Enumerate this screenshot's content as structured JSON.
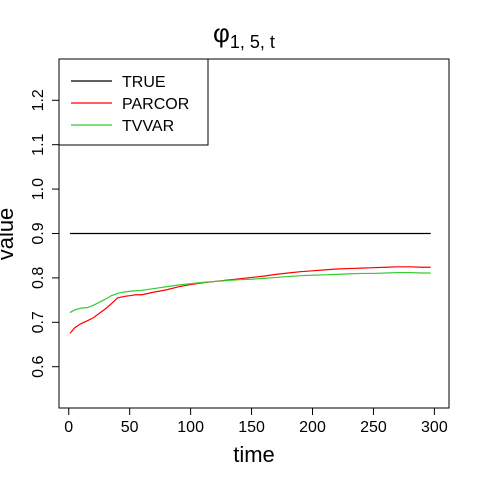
{
  "chart_data": {
    "type": "line",
    "title": {
      "symbol": "φ",
      "subscript": "1, 5, t"
    },
    "xlabel": "time",
    "ylabel": "value",
    "xlim": [
      -8,
      312
    ],
    "ylim": [
      0.507,
      1.293
    ],
    "x_ticks": [
      0,
      50,
      100,
      150,
      200,
      250,
      300
    ],
    "y_ticks": [
      0.6,
      0.7,
      0.8,
      0.9,
      1.0,
      1.1,
      1.2
    ],
    "y_tick_labels": [
      "0.6",
      "0.7",
      "0.8",
      "0.9",
      "1.0",
      "1.1",
      "1.2"
    ],
    "legend_position": "top-left",
    "series": [
      {
        "name": "TRUE",
        "color": "#000000",
        "x": [
          1,
          297
        ],
        "y": [
          0.9,
          0.9
        ]
      },
      {
        "name": "PARCOR",
        "color": "#ff0000",
        "x": [
          1,
          5,
          10,
          15,
          20,
          25,
          30,
          35,
          40,
          45,
          50,
          55,
          60,
          70,
          80,
          90,
          100,
          110,
          120,
          130,
          140,
          150,
          160,
          170,
          180,
          190,
          200,
          210,
          220,
          230,
          240,
          250,
          260,
          270,
          280,
          290,
          297
        ],
        "y": [
          0.675,
          0.688,
          0.697,
          0.703,
          0.71,
          0.72,
          0.73,
          0.742,
          0.755,
          0.758,
          0.76,
          0.762,
          0.762,
          0.768,
          0.773,
          0.78,
          0.785,
          0.789,
          0.792,
          0.795,
          0.798,
          0.801,
          0.804,
          0.808,
          0.811,
          0.814,
          0.816,
          0.818,
          0.82,
          0.821,
          0.822,
          0.823,
          0.824,
          0.825,
          0.825,
          0.824,
          0.824
        ]
      },
      {
        "name": "TVVAR",
        "color": "#33cc33",
        "x": [
          1,
          5,
          10,
          15,
          20,
          25,
          30,
          35,
          40,
          45,
          50,
          55,
          60,
          70,
          80,
          90,
          100,
          110,
          120,
          130,
          140,
          150,
          160,
          170,
          180,
          190,
          200,
          210,
          220,
          230,
          240,
          250,
          260,
          270,
          280,
          290,
          297
        ],
        "y": [
          0.722,
          0.728,
          0.732,
          0.733,
          0.738,
          0.745,
          0.752,
          0.76,
          0.765,
          0.768,
          0.77,
          0.771,
          0.772,
          0.776,
          0.78,
          0.784,
          0.787,
          0.79,
          0.792,
          0.794,
          0.796,
          0.797,
          0.799,
          0.801,
          0.803,
          0.805,
          0.806,
          0.807,
          0.808,
          0.809,
          0.81,
          0.81,
          0.811,
          0.812,
          0.812,
          0.811,
          0.811
        ]
      }
    ]
  }
}
